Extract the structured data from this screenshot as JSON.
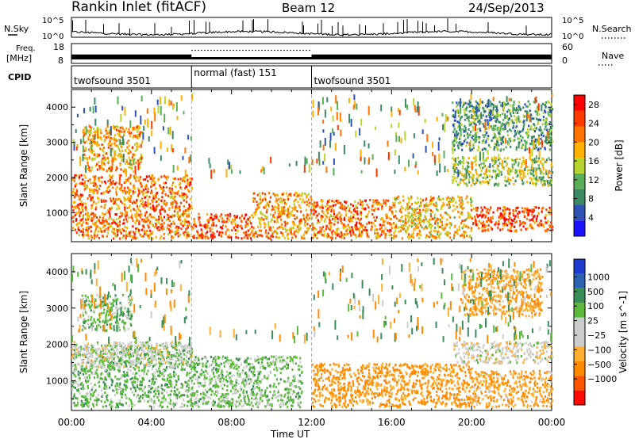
{
  "header": {
    "station": "Rankin Inlet (fitACF)",
    "beam": "Beam 12",
    "date": "24/Sep/2013"
  },
  "noise_panel": {
    "left_label": "N.Sky",
    "right_label": "N.Search",
    "y_ticks": [
      "10^5",
      "10^0"
    ],
    "y_range_log10": [
      0,
      5
    ]
  },
  "freq_panel": {
    "left_label_line1": "Freq.",
    "left_label_line2": "[MHz]",
    "left_ticks": [
      "18",
      "8"
    ],
    "left_range": [
      8,
      18
    ],
    "right_label": "Nave",
    "right_ticks": [
      "60",
      "0"
    ],
    "right_range": [
      0,
      60
    ]
  },
  "cpid": {
    "label": "CPID",
    "segments": [
      {
        "label": "twofsound 3501",
        "start_hour": 0,
        "end_hour": 6
      },
      {
        "label": "normal (fast) 151",
        "start_hour": 6,
        "end_hour": 12
      },
      {
        "label": "twofsound 3501",
        "start_hour": 12,
        "end_hour": 24
      }
    ]
  },
  "x_axis": {
    "label": "Time UT",
    "ticks": [
      "00:00",
      "04:00",
      "08:00",
      "12:00",
      "16:00",
      "20:00",
      "00:00"
    ],
    "range_hours": [
      0,
      24
    ]
  },
  "colors": {
    "power_scale": [
      "#1d12ff",
      "#2f51b5",
      "#3c8a64",
      "#59ae59",
      "#b8d42e",
      "#ffb000",
      "#ff7400",
      "#ff3a00",
      "#ff0000"
    ],
    "velocity_scale": [
      "#ff0a00",
      "#ff5500",
      "#ff8a00",
      "#ffae31",
      "#cccccc",
      "#cccccc",
      "#5cbb3a",
      "#3a8e58",
      "#2d62b0",
      "#1d3ccd"
    ]
  },
  "chart_data": [
    {
      "type": "heatmap",
      "name": "power",
      "ylabel": "Slant Range [km]",
      "xlabel": "",
      "xlim_hours": [
        0,
        24
      ],
      "ylim_km": [
        180,
        4500
      ],
      "y_ticks": [
        1000,
        2000,
        3000,
        4000
      ],
      "colorbar": {
        "label": "Power [dB]",
        "ticks": [
          4,
          8,
          12,
          16,
          20,
          24,
          28
        ],
        "range": [
          0,
          30
        ]
      },
      "regions": [
        {
          "t0": 0.0,
          "t1": 6.0,
          "r0": 300,
          "r1": 2100,
          "value": 22
        },
        {
          "t0": 6.0,
          "t1": 9.0,
          "r0": 300,
          "r1": 1000,
          "value": 24
        },
        {
          "t0": 9.0,
          "t1": 12.0,
          "r0": 300,
          "r1": 1600,
          "value": 20
        },
        {
          "t0": 12.0,
          "t1": 16.0,
          "r0": 300,
          "r1": 1400,
          "value": 22
        },
        {
          "t0": 16.0,
          "t1": 20.0,
          "r0": 300,
          "r1": 1500,
          "value": 18
        },
        {
          "t0": 19.0,
          "t1": 24.0,
          "r0": 1800,
          "r1": 2600,
          "value": 14
        },
        {
          "t0": 20.0,
          "t1": 24.0,
          "r0": 500,
          "r1": 1200,
          "value": 24
        },
        {
          "t0": 0.5,
          "t1": 3.5,
          "r0": 2200,
          "r1": 3500,
          "value": 20
        },
        {
          "t0": 19.0,
          "t1": 24.0,
          "r0": 2800,
          "r1": 4200,
          "value": 10
        }
      ]
    },
    {
      "type": "heatmap",
      "name": "velocity",
      "ylabel": "Slant Range [km]",
      "xlabel": "Time UT",
      "xlim_hours": [
        0,
        24
      ],
      "ylim_km": [
        180,
        4500
      ],
      "y_ticks": [
        1000,
        2000,
        3000,
        4000
      ],
      "colorbar": {
        "label": "Velocity [m s^-1]",
        "ticks": [
          "1000",
          "500",
          "100",
          "25",
          "−25",
          "−100",
          "−500",
          "−1000"
        ]
      },
      "regions": [
        {
          "t0": 0.0,
          "t1": 6.0,
          "r0": 300,
          "r1": 2000,
          "value": 60
        },
        {
          "t0": 0.0,
          "t1": 6.0,
          "r0": 1400,
          "r1": 2100,
          "value": 0
        },
        {
          "t0": 6.0,
          "t1": 11.5,
          "r0": 300,
          "r1": 1700,
          "value": 50
        },
        {
          "t0": 12.0,
          "t1": 20.0,
          "r0": 300,
          "r1": 1500,
          "value": -150
        },
        {
          "t0": 19.0,
          "t1": 24.0,
          "r0": 1500,
          "r1": 2100,
          "value": 0
        },
        {
          "t0": 20.0,
          "t1": 24.0,
          "r0": 300,
          "r1": 1300,
          "value": -100
        },
        {
          "t0": 0.5,
          "t1": 3.0,
          "r0": 2400,
          "r1": 3400,
          "value": 60
        },
        {
          "t0": 19.5,
          "t1": 23.5,
          "r0": 2800,
          "r1": 4100,
          "value": -80
        }
      ]
    }
  ]
}
